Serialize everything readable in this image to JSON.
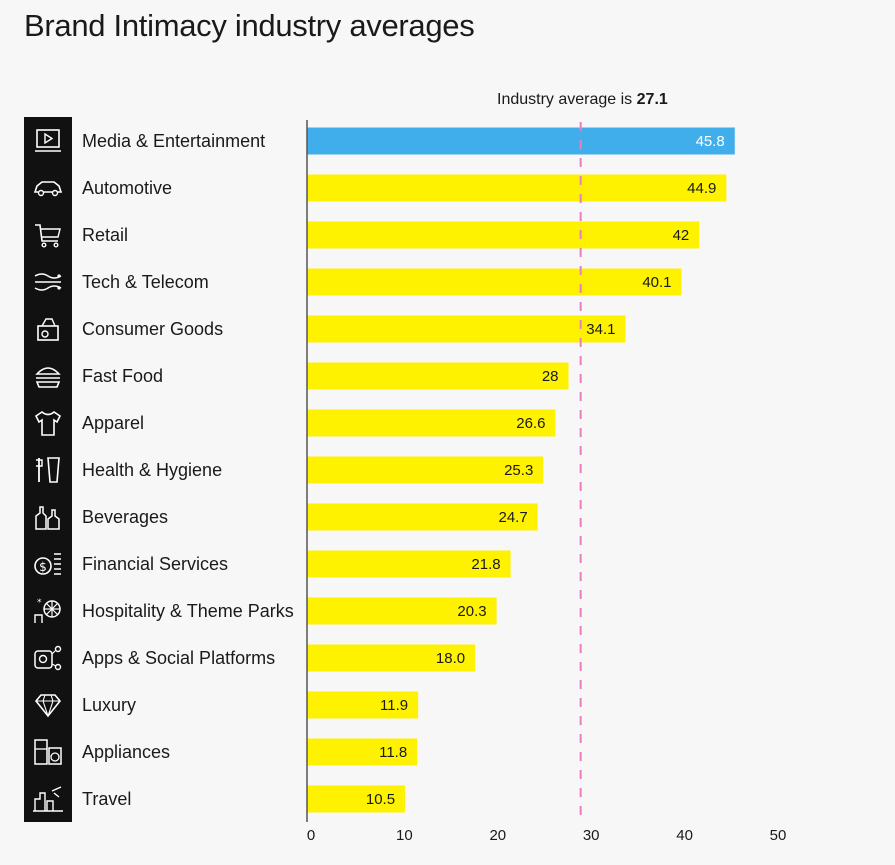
{
  "chart_data": {
    "type": "bar",
    "orientation": "horizontal",
    "title": "Brand Intimacy industry averages",
    "categories": [
      "Media & Entertainment",
      "Automotive",
      "Retail",
      "Tech & Telecom",
      "Consumer Goods",
      "Fast Food",
      "Apparel",
      "Health & Hygiene",
      "Beverages",
      "Financial Services",
      "Hospitality & Theme Parks",
      "Apps & Social Platforms",
      "Luxury",
      "Appliances",
      "Travel"
    ],
    "values": [
      45.8,
      44.9,
      42,
      40.1,
      34.1,
      28,
      26.6,
      25.3,
      24.7,
      21.8,
      20.3,
      18.0,
      11.9,
      11.8,
      10.5
    ],
    "value_labels": [
      "45.8",
      "44.9",
      "42",
      "40.1",
      "34.1",
      "28",
      "26.6",
      "25.3",
      "24.7",
      "21.8",
      "20.3",
      "18.0",
      "11.9",
      "11.8",
      "10.5"
    ],
    "highlight_index": 0,
    "colors": {
      "default": "#fef200",
      "highlight": "#41aeec",
      "average_line": "#e57fc0"
    },
    "xlim": [
      0,
      50
    ],
    "x_ticks": [
      "0",
      "10",
      "20",
      "30",
      "40",
      "50"
    ],
    "average": {
      "prefix": "Industry average is",
      "value": "27.1"
    },
    "icons": [
      "media-player-icon",
      "car-icon",
      "shopping-cart-icon",
      "network-signal-icon",
      "consumer-goods-icon",
      "burger-icon",
      "shirt-icon",
      "toiletries-icon",
      "bottles-icon",
      "money-stack-icon",
      "ferris-wheel-icon",
      "apps-share-icon",
      "diamond-icon",
      "appliances-icon",
      "travel-city-icon"
    ]
  }
}
